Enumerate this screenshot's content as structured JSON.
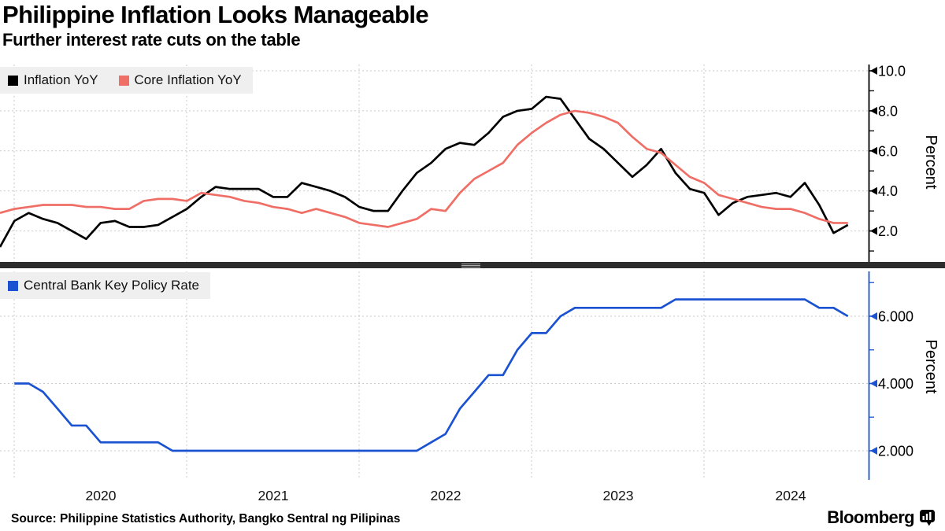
{
  "header": {
    "title": "Philippine Inflation Looks Manageable",
    "subtitle": "Further interest rate cuts on the table"
  },
  "footer": {
    "source": "Source: Philippine Statistics Authority, Bangko Sentral ng Pilipinas",
    "brand": "Bloomberg"
  },
  "colors": {
    "inflation_line": "#000000",
    "core_inflation_line": "#ef6e66",
    "policy_rate_line": "#1a52d1",
    "grid": "#c9c9c9",
    "legend_bg": "#efefef",
    "divider": "#2d2d2d"
  },
  "x_axis": {
    "year_labels": [
      "2020",
      "2021",
      "2022",
      "2023",
      "2024"
    ]
  },
  "chart_data": [
    {
      "type": "line",
      "panel": "inflation",
      "ylabel": "Percent",
      "freq": "monthly",
      "x_start": "2019-11",
      "x_end": "2024-10",
      "ylim": [
        0.5,
        10.4
      ],
      "grid": true,
      "legend_position": "top-left",
      "y_ticks": {
        "values": [
          2,
          4,
          6,
          8,
          10
        ],
        "labels": [
          "2.0",
          "4.0",
          "6.0",
          "8.0",
          "10.0"
        ],
        "minor": [
          1,
          3,
          5,
          7,
          9
        ]
      },
      "series": [
        {
          "name": "Inflation YoY",
          "color": "#000000",
          "values": [
            1.2,
            2.5,
            2.9,
            2.6,
            2.4,
            2.0,
            1.6,
            2.4,
            2.5,
            2.2,
            2.2,
            2.3,
            2.7,
            3.1,
            3.7,
            4.2,
            4.1,
            4.1,
            4.1,
            3.7,
            3.7,
            4.4,
            4.2,
            4.0,
            3.7,
            3.2,
            3.0,
            3.0,
            4.0,
            4.9,
            5.4,
            6.1,
            6.4,
            6.3,
            6.9,
            7.7,
            8.0,
            8.1,
            8.7,
            8.6,
            7.6,
            6.6,
            6.1,
            5.4,
            4.7,
            5.3,
            6.1,
            4.9,
            4.1,
            3.9,
            2.8,
            3.4,
            3.7,
            3.8,
            3.9,
            3.7,
            4.4,
            3.3,
            1.9,
            2.3
          ]
        },
        {
          "name": "Core Inflation YoY",
          "color": "#ef6e66",
          "values": [
            2.9,
            3.1,
            3.2,
            3.3,
            3.3,
            3.3,
            3.2,
            3.2,
            3.1,
            3.1,
            3.5,
            3.6,
            3.6,
            3.5,
            3.9,
            3.8,
            3.7,
            3.5,
            3.4,
            3.2,
            3.1,
            2.9,
            3.1,
            2.9,
            2.7,
            2.4,
            2.3,
            2.2,
            2.4,
            2.6,
            3.1,
            3.0,
            3.9,
            4.6,
            5.0,
            5.4,
            6.3,
            6.9,
            7.4,
            7.8,
            8.0,
            7.9,
            7.7,
            7.4,
            6.7,
            6.1,
            5.9,
            5.3,
            4.7,
            4.4,
            3.8,
            3.6,
            3.4,
            3.2,
            3.1,
            3.1,
            2.9,
            2.6,
            2.4,
            2.4
          ]
        }
      ]
    },
    {
      "type": "line",
      "panel": "policy-rate",
      "ylabel": "Percent",
      "freq": "monthly",
      "x_start": "2019-12",
      "x_end": "2024-10",
      "ylim": [
        1.1,
        7.3
      ],
      "grid": true,
      "axis_color": "#1a52d1",
      "legend_position": "top-left",
      "y_ticks": {
        "values": [
          2,
          4,
          6
        ],
        "labels": [
          "2.000",
          "4.000",
          "6.000"
        ],
        "minor": [
          3,
          5,
          7
        ]
      },
      "series": [
        {
          "name": "Central Bank Key Policy Rate",
          "color": "#1a52d1",
          "values": [
            4.0,
            4.0,
            3.75,
            3.25,
            2.75,
            2.75,
            2.25,
            2.25,
            2.25,
            2.25,
            2.25,
            2.0,
            2.0,
            2.0,
            2.0,
            2.0,
            2.0,
            2.0,
            2.0,
            2.0,
            2.0,
            2.0,
            2.0,
            2.0,
            2.0,
            2.0,
            2.0,
            2.0,
            2.0,
            2.25,
            2.5,
            3.25,
            3.75,
            4.25,
            4.25,
            5.0,
            5.5,
            5.5,
            6.0,
            6.25,
            6.25,
            6.25,
            6.25,
            6.25,
            6.25,
            6.25,
            6.5,
            6.5,
            6.5,
            6.5,
            6.5,
            6.5,
            6.5,
            6.5,
            6.5,
            6.5,
            6.25,
            6.25,
            6.0
          ]
        }
      ]
    }
  ]
}
